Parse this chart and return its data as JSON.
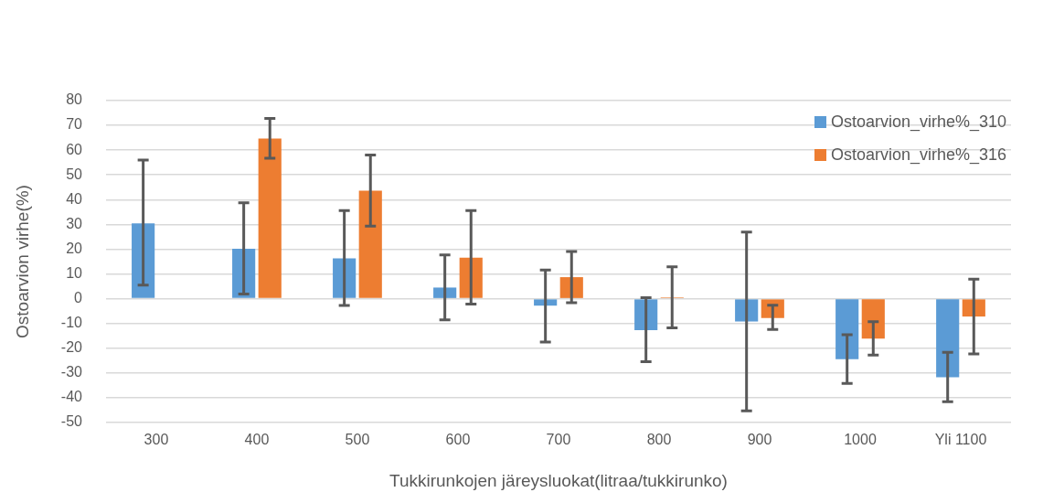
{
  "chart_data": {
    "type": "bar",
    "xlabel": "Tukkirunkojen järeysluokat(litraa/tukkirunko)",
    "ylabel": "Ostoarvion virhe(%)",
    "categories": [
      "300",
      "400",
      "500",
      "600",
      "700",
      "800",
      "900",
      "1000",
      "Yli 1100"
    ],
    "series": [
      {
        "name": "Ostoarvion_virhe%_310",
        "color": "#5b9bd5",
        "values": [
          30.4,
          20.2,
          16.3,
          4.5,
          -2.8,
          -12.7,
          -9.2,
          -24.4,
          -31.7
        ],
        "errors": [
          [
            5.5,
            56
          ],
          [
            1.9,
            38.7
          ],
          [
            -2.7,
            35.6
          ],
          [
            -8.5,
            17.7
          ],
          [
            -17.5,
            11.6
          ],
          [
            -25.4,
            0.4
          ],
          [
            -45.3,
            26.9
          ],
          [
            -34.2,
            -14.5
          ],
          [
            -41.6,
            -21.7
          ]
        ]
      },
      {
        "name": "Ostoarvion_virhe%_316",
        "color": "#ed7d31",
        "values": [
          null,
          64.7,
          43.6,
          16.6,
          8.7,
          0.5,
          -7.8,
          -16.1,
          -7.2
        ],
        "errors": [
          null,
          [
            56.7,
            72.8
          ],
          [
            29.3,
            58
          ],
          [
            -2.2,
            35.6
          ],
          [
            -1.6,
            19.1
          ],
          [
            -11.8,
            12.9
          ],
          [
            -12.4,
            -2.6
          ],
          [
            -22.8,
            -9.3
          ],
          [
            -22.3,
            7.9
          ]
        ]
      }
    ],
    "ylim": [
      -50,
      80
    ],
    "yticks": [
      -50,
      -40,
      -30,
      -20,
      -10,
      0,
      10,
      20,
      30,
      40,
      50,
      60,
      70,
      80
    ],
    "grid": "y",
    "legend": "top right"
  }
}
